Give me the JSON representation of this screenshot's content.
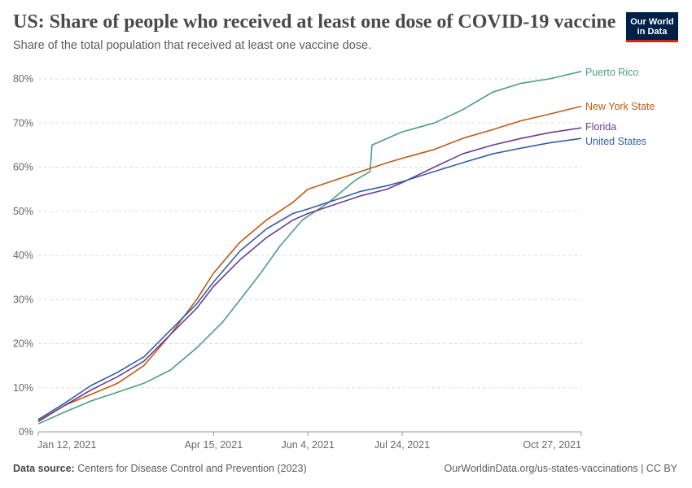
{
  "header": {
    "title": "US: Share of people who received at least one dose of COVID-19 vaccine",
    "subtitle": "Share of the total population that received at least one vaccine dose.",
    "logo_line1": "Our World",
    "logo_line2": "in Data"
  },
  "footer": {
    "source_label": "Data source:",
    "source_text": "Centers for Disease Control and Prevention (2023)",
    "url_text": "OurWorldinData.org/us-states-vaccinations | CC BY"
  },
  "colors": {
    "Puerto Rico": "#4c9e87",
    "New York State": "#c05917",
    "Florida": "#6d3e91",
    "United States": "#3360a9",
    "grid": "#dddddd",
    "axis": "#999999"
  },
  "chart_data": {
    "type": "line",
    "title": "US: Share of people who received at least one dose of COVID-19 vaccine",
    "subtitle": "Share of the total population that received at least one vaccine dose.",
    "xlabel": "",
    "ylabel": "",
    "x_tick_labels": [
      "Jan 12, 2021",
      "Apr 15, 2021",
      "Jun 4, 2021",
      "Jul 24, 2021",
      "Oct 27, 2021"
    ],
    "x_tick_dates": [
      "2021-01-12",
      "2021-04-15",
      "2021-06-04",
      "2021-07-24",
      "2021-10-27"
    ],
    "y_tick_labels": [
      "0%",
      "10%",
      "20%",
      "30%",
      "40%",
      "50%",
      "60%",
      "70%",
      "80%"
    ],
    "ylim": [
      0,
      80
    ],
    "xlim": [
      "2021-01-12",
      "2021-10-27"
    ],
    "grid": "horizontal dashed",
    "legend": "line-end labels on right",
    "series": [
      {
        "name": "Puerto Rico",
        "points": [
          [
            "2021-01-12",
            1.8
          ],
          [
            "2021-01-26",
            4.5
          ],
          [
            "2021-02-09",
            7.0
          ],
          [
            "2021-02-23",
            9.0
          ],
          [
            "2021-03-09",
            11.0
          ],
          [
            "2021-03-23",
            14.0
          ],
          [
            "2021-04-06",
            19.0
          ],
          [
            "2021-04-20",
            25.0
          ],
          [
            "2021-05-01",
            31.0
          ],
          [
            "2021-05-10",
            36.0
          ],
          [
            "2021-05-20",
            42.0
          ],
          [
            "2021-06-01",
            48.0
          ],
          [
            "2021-06-15",
            52.0
          ],
          [
            "2021-06-29",
            57.0
          ],
          [
            "2021-07-07",
            59.0
          ],
          [
            "2021-07-08",
            65.0
          ],
          [
            "2021-07-24",
            68.0
          ],
          [
            "2021-08-10",
            70.0
          ],
          [
            "2021-08-25",
            73.0
          ],
          [
            "2021-09-10",
            77.0
          ],
          [
            "2021-09-25",
            79.0
          ],
          [
            "2021-10-10",
            80.0
          ],
          [
            "2021-10-20",
            81.0
          ],
          [
            "2021-10-27",
            81.7
          ]
        ]
      },
      {
        "name": "New York State",
        "points": [
          [
            "2021-01-12",
            2.5
          ],
          [
            "2021-01-26",
            6.0
          ],
          [
            "2021-02-09",
            8.5
          ],
          [
            "2021-02-23",
            11.0
          ],
          [
            "2021-03-09",
            15.0
          ],
          [
            "2021-03-23",
            22.0
          ],
          [
            "2021-04-06",
            30.0
          ],
          [
            "2021-04-15",
            36.0
          ],
          [
            "2021-04-29",
            43.0
          ],
          [
            "2021-05-13",
            48.0
          ],
          [
            "2021-05-27",
            52.0
          ],
          [
            "2021-06-04",
            55.0
          ],
          [
            "2021-06-18",
            57.0
          ],
          [
            "2021-07-02",
            59.0
          ],
          [
            "2021-07-16",
            61.0
          ],
          [
            "2021-07-24",
            62.0
          ],
          [
            "2021-08-10",
            64.0
          ],
          [
            "2021-08-25",
            66.5
          ],
          [
            "2021-09-10",
            68.5
          ],
          [
            "2021-09-25",
            70.5
          ],
          [
            "2021-10-10",
            72.0
          ],
          [
            "2021-10-27",
            73.8
          ]
        ]
      },
      {
        "name": "Florida",
        "points": [
          [
            "2021-01-12",
            2.3
          ],
          [
            "2021-01-26",
            6.0
          ],
          [
            "2021-02-09",
            9.5
          ],
          [
            "2021-02-23",
            12.5
          ],
          [
            "2021-03-09",
            16.0
          ],
          [
            "2021-03-23",
            22.0
          ],
          [
            "2021-04-06",
            28.0
          ],
          [
            "2021-04-15",
            33.0
          ],
          [
            "2021-04-29",
            39.0
          ],
          [
            "2021-05-13",
            44.0
          ],
          [
            "2021-05-27",
            48.0
          ],
          [
            "2021-06-04",
            49.5
          ],
          [
            "2021-06-18",
            51.5
          ],
          [
            "2021-07-02",
            53.5
          ],
          [
            "2021-07-16",
            55.0
          ],
          [
            "2021-07-24",
            56.5
          ],
          [
            "2021-08-10",
            60.0
          ],
          [
            "2021-08-25",
            63.0
          ],
          [
            "2021-09-10",
            65.0
          ],
          [
            "2021-09-25",
            66.5
          ],
          [
            "2021-10-10",
            67.8
          ],
          [
            "2021-10-27",
            68.9
          ]
        ]
      },
      {
        "name": "United States",
        "points": [
          [
            "2021-01-12",
            2.8
          ],
          [
            "2021-01-26",
            6.5
          ],
          [
            "2021-02-09",
            10.5
          ],
          [
            "2021-02-23",
            13.5
          ],
          [
            "2021-03-09",
            17.0
          ],
          [
            "2021-03-23",
            23.0
          ],
          [
            "2021-04-06",
            29.0
          ],
          [
            "2021-04-15",
            34.0
          ],
          [
            "2021-04-29",
            41.0
          ],
          [
            "2021-05-13",
            46.0
          ],
          [
            "2021-05-27",
            49.5
          ],
          [
            "2021-06-04",
            50.5
          ],
          [
            "2021-06-18",
            52.5
          ],
          [
            "2021-07-02",
            54.5
          ],
          [
            "2021-07-16",
            55.8
          ],
          [
            "2021-07-24",
            56.7
          ],
          [
            "2021-08-10",
            59.0
          ],
          [
            "2021-08-25",
            61.0
          ],
          [
            "2021-09-10",
            63.0
          ],
          [
            "2021-09-25",
            64.3
          ],
          [
            "2021-10-10",
            65.5
          ],
          [
            "2021-10-27",
            66.5
          ]
        ]
      }
    ]
  }
}
